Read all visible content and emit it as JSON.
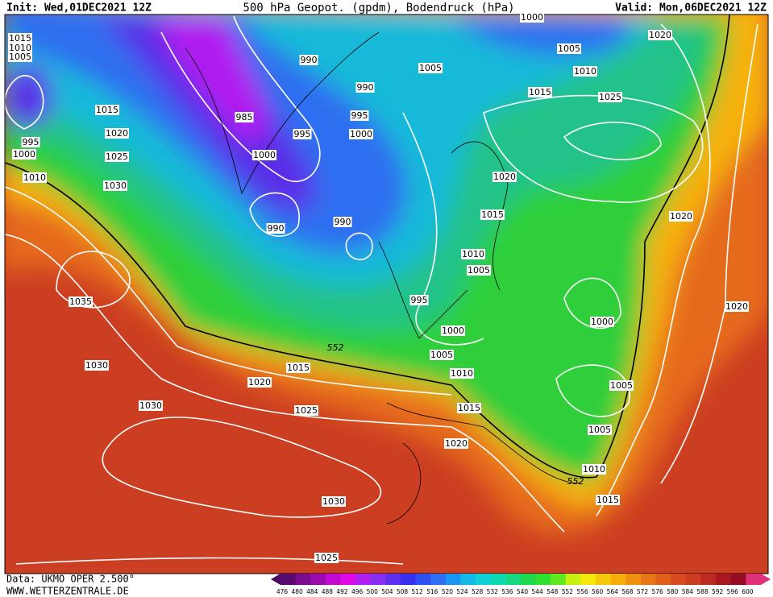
{
  "header": {
    "init": "Init: Wed,01DEC2021 12Z",
    "title": "500 hPa Geopot. (gpdm), Bodendruck (hPa)",
    "valid": "Valid: Mon,06DEC2021 12Z"
  },
  "isobar_labels": [
    "1015",
    "1010",
    "1005",
    "1015",
    "1020",
    "995",
    "1000",
    "1025",
    "1010",
    "1030",
    "1035",
    "1030",
    "1030",
    "1020",
    "1015",
    "1025",
    "1030",
    "1025",
    "985",
    "990",
    "990",
    "995",
    "995",
    "1000",
    "1000",
    "990",
    "990",
    "995",
    "1000",
    "1005",
    "1010",
    "1015",
    "1020",
    "1005",
    "1000",
    "1005",
    "1010",
    "1015",
    "1025",
    "1020",
    "1020",
    "1015",
    "1010",
    "1005",
    "1000",
    "1005",
    "1005",
    "1010",
    "1015",
    "1020",
    "1020"
  ],
  "contour_labels": [
    "552",
    "552"
  ],
  "scale": {
    "labels": [
      476,
      480,
      484,
      488,
      492,
      496,
      500,
      504,
      508,
      512,
      516,
      520,
      524,
      528,
      532,
      536,
      540,
      544,
      548,
      552,
      556,
      560,
      564,
      568,
      572,
      576,
      580,
      584,
      588,
      592,
      596,
      600
    ]
  },
  "footer": {
    "data": "Data: UKMO OPER 2.500°",
    "site": "WWW.WETTERZENTRALE.DE"
  }
}
